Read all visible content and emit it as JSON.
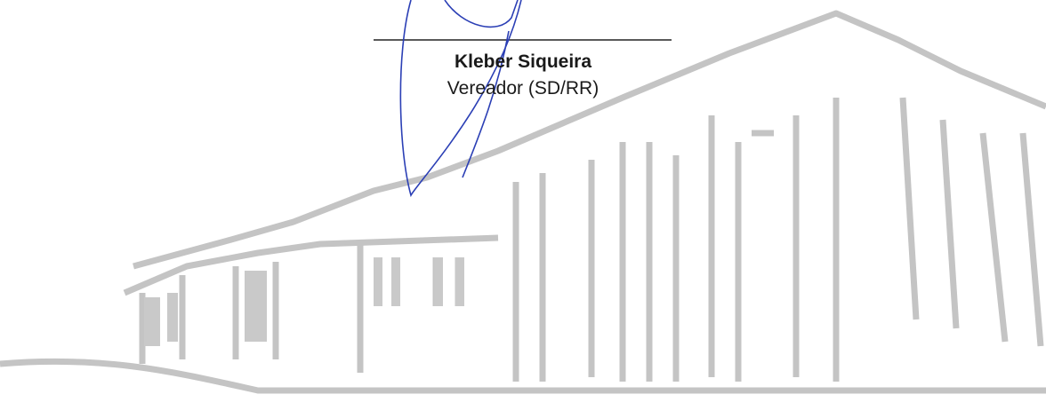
{
  "signature": {
    "name": "Kleber Siqueira",
    "role": "Vereador (SD/RR)"
  }
}
